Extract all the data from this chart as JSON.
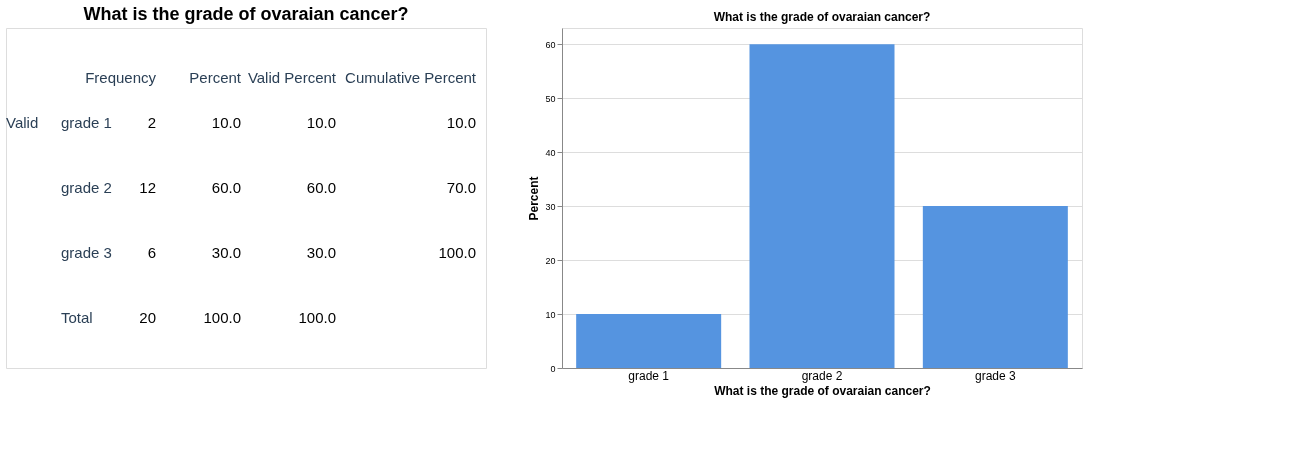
{
  "chart_data": [
    {
      "type": "other",
      "title": "What is the grade of ovaraian cancer?",
      "annotations": [
        "Frequency",
        "Percent",
        "Valid Percent",
        "Cumulative Percent",
        "Valid",
        "grade 1",
        "2",
        "10.0",
        "10.0",
        "10.0",
        "grade 2",
        "12",
        "60.0",
        "60.0",
        "70.0",
        "grade 3",
        "6",
        "30.0",
        "30.0",
        "100.0",
        "Total",
        "20",
        "100.0",
        "100.0"
      ]
    },
    {
      "type": "bar",
      "title": "What is the grade of ovaraian cancer?",
      "xlabel": "What is the grade of ovaraian cancer?",
      "ylabel": "Percent",
      "categories": [
        "grade 1",
        "grade 2",
        "grade 3"
      ],
      "values": [
        10,
        60,
        30
      ],
      "color": "#5594e0",
      "ylim": [
        0,
        63
      ],
      "yticks": [
        0,
        10,
        20,
        30,
        40,
        50,
        60
      ],
      "grid": "y"
    }
  ]
}
